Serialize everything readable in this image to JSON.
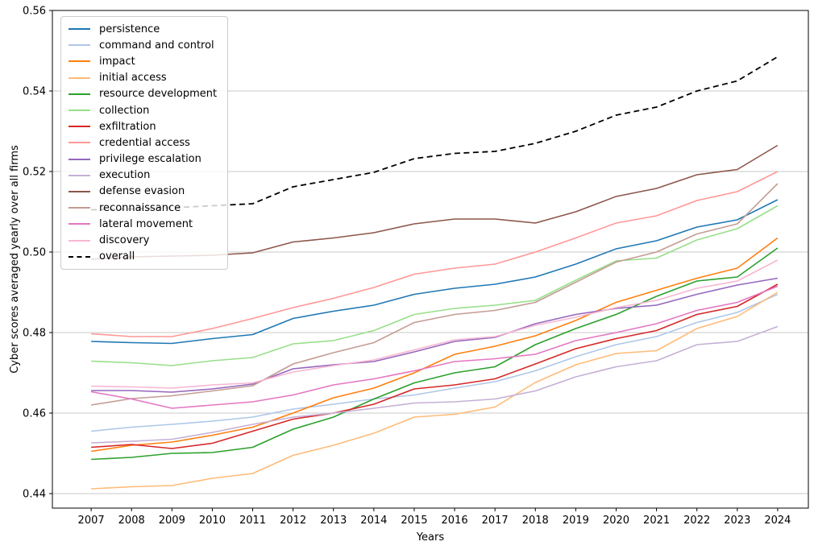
{
  "chart_data": {
    "type": "line",
    "title": "",
    "xlabel": "Years",
    "ylabel": "Cyber scores averaged yearly over all firms",
    "x": [
      2007,
      2008,
      2009,
      2010,
      2011,
      2012,
      2013,
      2014,
      2015,
      2016,
      2017,
      2018,
      2019,
      2020,
      2021,
      2022,
      2023,
      2024
    ],
    "x_tick_labels": [
      "2007",
      "2008",
      "2009",
      "2010",
      "2011",
      "2012",
      "2013",
      "2014",
      "2015",
      "2016",
      "2017",
      "2018",
      "2019",
      "2020",
      "2021",
      "2022",
      "2023",
      "2024"
    ],
    "y_ticks": [
      0.44,
      0.46,
      0.48,
      0.5,
      0.52,
      0.54,
      0.56
    ],
    "y_tick_labels": [
      "0.44",
      "0.46",
      "0.48",
      "0.50",
      "0.52",
      "0.54",
      "0.56"
    ],
    "xlim": [
      2006.04,
      2024.76
    ],
    "ylim": [
      0.4364,
      0.56
    ],
    "grid": "horizontal",
    "grid_color": "#b8b8b8",
    "legend_position": "upper-left",
    "series": [
      {
        "name": "persistence",
        "color": "#1f77b4",
        "dash": false,
        "values": [
          0.4778,
          0.4775,
          0.4773,
          0.4785,
          0.4795,
          0.4835,
          0.4853,
          0.4868,
          0.4895,
          0.491,
          0.492,
          0.4938,
          0.497,
          0.5008,
          0.5028,
          0.5062,
          0.508,
          0.513
        ]
      },
      {
        "name": "command and control",
        "color": "#aec7e8",
        "dash": false,
        "values": [
          0.4555,
          0.4565,
          0.4572,
          0.458,
          0.459,
          0.461,
          0.4622,
          0.4635,
          0.4645,
          0.4662,
          0.4678,
          0.4705,
          0.474,
          0.477,
          0.479,
          0.4825,
          0.485,
          0.4895
        ]
      },
      {
        "name": "impact",
        "color": "#ff7f0e",
        "dash": false,
        "values": [
          0.4505,
          0.452,
          0.4528,
          0.4545,
          0.4565,
          0.46,
          0.4638,
          0.4662,
          0.47,
          0.4746,
          0.4766,
          0.4792,
          0.483,
          0.4875,
          0.4905,
          0.4935,
          0.496,
          0.5035
        ]
      },
      {
        "name": "initial access",
        "color": "#ffbb78",
        "dash": false,
        "values": [
          0.4412,
          0.4417,
          0.442,
          0.4438,
          0.445,
          0.4495,
          0.452,
          0.455,
          0.459,
          0.4597,
          0.4615,
          0.4676,
          0.472,
          0.4748,
          0.4755,
          0.481,
          0.484,
          0.49
        ]
      },
      {
        "name": "resource development",
        "color": "#2ca02c",
        "dash": false,
        "values": [
          0.4485,
          0.449,
          0.45,
          0.4502,
          0.4515,
          0.456,
          0.459,
          0.4635,
          0.4675,
          0.47,
          0.4715,
          0.477,
          0.481,
          0.4845,
          0.489,
          0.4928,
          0.4938,
          0.501
        ]
      },
      {
        "name": "collection",
        "color": "#98df8a",
        "dash": false,
        "values": [
          0.4729,
          0.4725,
          0.4718,
          0.473,
          0.4738,
          0.4772,
          0.478,
          0.4805,
          0.4845,
          0.486,
          0.4868,
          0.488,
          0.493,
          0.4978,
          0.4985,
          0.503,
          0.5058,
          0.5115
        ]
      },
      {
        "name": "exfiltration",
        "color": "#d62728",
        "dash": false,
        "values": [
          0.4515,
          0.4522,
          0.4512,
          0.4525,
          0.4555,
          0.4585,
          0.46,
          0.4622,
          0.466,
          0.467,
          0.4685,
          0.4722,
          0.476,
          0.4785,
          0.4805,
          0.4845,
          0.4865,
          0.492
        ]
      },
      {
        "name": "credential access",
        "color": "#ff9896",
        "dash": false,
        "values": [
          0.4797,
          0.479,
          0.479,
          0.481,
          0.4835,
          0.4862,
          0.4885,
          0.4912,
          0.4945,
          0.496,
          0.497,
          0.5,
          0.5035,
          0.5072,
          0.509,
          0.5128,
          0.515,
          0.52
        ]
      },
      {
        "name": "privilege escalation",
        "color": "#9467bd",
        "dash": false,
        "values": [
          0.4656,
          0.4656,
          0.4652,
          0.466,
          0.4672,
          0.471,
          0.472,
          0.4728,
          0.4752,
          0.4778,
          0.4788,
          0.4822,
          0.4845,
          0.486,
          0.4868,
          0.4895,
          0.4918,
          0.4935
        ]
      },
      {
        "name": "execution",
        "color": "#c5b0d5",
        "dash": false,
        "values": [
          0.4526,
          0.453,
          0.4535,
          0.4552,
          0.4572,
          0.459,
          0.46,
          0.4612,
          0.4625,
          0.4628,
          0.4635,
          0.4655,
          0.469,
          0.4715,
          0.473,
          0.477,
          0.4778,
          0.4815
        ]
      },
      {
        "name": "defense evasion",
        "color": "#8c564b",
        "dash": false,
        "values": [
          0.4982,
          0.4988,
          0.499,
          0.4992,
          0.4998,
          0.5025,
          0.5035,
          0.5048,
          0.507,
          0.5082,
          0.5082,
          0.5072,
          0.51,
          0.5138,
          0.5158,
          0.5192,
          0.5205,
          0.5265
        ]
      },
      {
        "name": "reconnaissance",
        "color": "#c49c94",
        "dash": false,
        "values": [
          0.462,
          0.4636,
          0.4643,
          0.4655,
          0.4668,
          0.4722,
          0.475,
          0.4775,
          0.4825,
          0.4845,
          0.4855,
          0.4875,
          0.4925,
          0.4975,
          0.5,
          0.5045,
          0.507,
          0.517
        ]
      },
      {
        "name": "lateral movement",
        "color": "#e377c2",
        "dash": false,
        "values": [
          0.4653,
          0.4635,
          0.4612,
          0.462,
          0.4628,
          0.4645,
          0.467,
          0.4685,
          0.4705,
          0.4728,
          0.4735,
          0.4746,
          0.478,
          0.48,
          0.4822,
          0.4855,
          0.4875,
          0.4915
        ]
      },
      {
        "name": "discovery",
        "color": "#f7b6d2",
        "dash": false,
        "values": [
          0.4667,
          0.4665,
          0.4662,
          0.467,
          0.4675,
          0.4702,
          0.4718,
          0.4732,
          0.4757,
          0.4782,
          0.479,
          0.4818,
          0.4838,
          0.4862,
          0.488,
          0.491,
          0.4928,
          0.498
        ]
      },
      {
        "name": "overall",
        "color": "#000000",
        "dash": true,
        "values": [
          0.5105,
          0.5107,
          0.511,
          0.5115,
          0.512,
          0.5162,
          0.518,
          0.5198,
          0.5232,
          0.5245,
          0.525,
          0.527,
          0.53,
          0.534,
          0.536,
          0.54,
          0.5425,
          0.5485
        ]
      }
    ]
  }
}
